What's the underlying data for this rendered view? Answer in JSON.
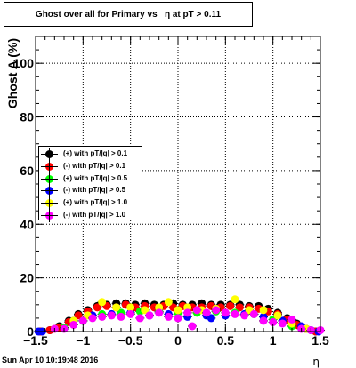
{
  "title": "Ghost over all for Primary vs   η at pT > 0.11",
  "footer": "Sun Apr 10 10:19:48 2016",
  "chart_data": {
    "type": "scatter",
    "xlabel": "η",
    "ylabel": "Ghost A (%)",
    "xlim": [
      -1.5,
      1.5
    ],
    "ylim": [
      0,
      110
    ],
    "x_ticks": [
      -1.5,
      -1,
      -0.5,
      0,
      0.5,
      1,
      1.5
    ],
    "x_tick_labels": [
      "−1.5",
      "−1",
      "−0.5",
      "0",
      "0.5",
      "1",
      "1.5"
    ],
    "y_ticks": [
      0,
      20,
      40,
      60,
      80,
      100
    ],
    "y_tick_labels": [
      "0",
      "20",
      "40",
      "60",
      "80",
      "100"
    ],
    "grid": true,
    "legend_position": "middle-left",
    "series": [
      {
        "name": "(+) with pT/|q| > 0.1",
        "color": "#000000",
        "points": [
          [
            -1.45,
            0
          ],
          [
            -1.35,
            0.5
          ],
          [
            -1.25,
            2
          ],
          [
            -1.15,
            4
          ],
          [
            -1.05,
            6.5
          ],
          [
            -0.95,
            8
          ],
          [
            -0.85,
            9.5
          ],
          [
            -0.75,
            10
          ],
          [
            -0.65,
            10.5
          ],
          [
            -0.55,
            10.5
          ],
          [
            -0.45,
            10
          ],
          [
            -0.35,
            10.5
          ],
          [
            -0.25,
            10
          ],
          [
            -0.15,
            10
          ],
          [
            -0.05,
            10.5
          ],
          [
            0.05,
            10
          ],
          [
            0.15,
            10
          ],
          [
            0.25,
            10.5
          ],
          [
            0.35,
            10
          ],
          [
            0.45,
            10
          ],
          [
            0.55,
            10
          ],
          [
            0.65,
            10
          ],
          [
            0.75,
            9.5
          ],
          [
            0.85,
            9.5
          ],
          [
            0.95,
            8.5
          ],
          [
            1.05,
            7
          ],
          [
            1.15,
            5
          ],
          [
            1.25,
            3
          ],
          [
            1.35,
            1
          ],
          [
            1.45,
            0
          ]
        ]
      },
      {
        "name": "(-) with pT/|q| > 0.1",
        "color": "#ff0000",
        "points": [
          [
            -1.45,
            0
          ],
          [
            -1.35,
            0.5
          ],
          [
            -1.25,
            1.5
          ],
          [
            -1.15,
            3.5
          ],
          [
            -1.05,
            6
          ],
          [
            -0.95,
            7.5
          ],
          [
            -0.85,
            9
          ],
          [
            -0.75,
            9.5
          ],
          [
            -0.65,
            9
          ],
          [
            -0.55,
            10
          ],
          [
            -0.45,
            9
          ],
          [
            -0.35,
            9.5
          ],
          [
            -0.25,
            9
          ],
          [
            -0.15,
            9.5
          ],
          [
            -0.05,
            9
          ],
          [
            0.05,
            9.5
          ],
          [
            0.15,
            9
          ],
          [
            0.25,
            9
          ],
          [
            0.35,
            9.5
          ],
          [
            0.45,
            9
          ],
          [
            0.55,
            9.5
          ],
          [
            0.65,
            9
          ],
          [
            0.75,
            9
          ],
          [
            0.85,
            8.5
          ],
          [
            0.95,
            7.5
          ],
          [
            1.05,
            6.5
          ],
          [
            1.15,
            4.5
          ],
          [
            1.25,
            2.5
          ],
          [
            1.35,
            1
          ],
          [
            1.45,
            0
          ]
        ]
      },
      {
        "name": "(+) with pT/|q| > 0.5",
        "color": "#00ff00",
        "points": [
          [
            -1.2,
            1.5
          ],
          [
            -1.0,
            4
          ],
          [
            -0.8,
            6.5
          ],
          [
            -0.6,
            7
          ],
          [
            -0.4,
            7.5
          ],
          [
            -0.2,
            7.5
          ],
          [
            0.0,
            7
          ],
          [
            0.2,
            7
          ],
          [
            0.4,
            7.5
          ],
          [
            0.6,
            7
          ],
          [
            0.8,
            6.5
          ],
          [
            1.0,
            4.5
          ],
          [
            1.2,
            2
          ]
        ]
      },
      {
        "name": "(-) with pT/|q| > 0.5",
        "color": "#0000ff",
        "points": [
          [
            -1.47,
            0
          ],
          [
            -1.43,
            0
          ],
          [
            -1.1,
            4
          ],
          [
            -0.9,
            6
          ],
          [
            -0.7,
            6.5
          ],
          [
            -0.5,
            7
          ],
          [
            -0.3,
            6
          ],
          [
            -0.1,
            6.5
          ],
          [
            0.1,
            5.5
          ],
          [
            0.3,
            6
          ],
          [
            0.35,
            5
          ],
          [
            0.5,
            6
          ],
          [
            0.7,
            6.5
          ],
          [
            0.9,
            5.5
          ],
          [
            1.1,
            4
          ],
          [
            1.3,
            2
          ],
          [
            1.4,
            0.5
          ],
          [
            1.48,
            0
          ]
        ]
      },
      {
        "name": "(+) with pT/|q| > 1.0",
        "color": "#ffff00",
        "points": [
          [
            -1.3,
            1
          ],
          [
            -1.1,
            4
          ],
          [
            -0.95,
            6
          ],
          [
            -0.8,
            11
          ],
          [
            -0.65,
            9
          ],
          [
            -0.5,
            9
          ],
          [
            -0.35,
            8
          ],
          [
            -0.2,
            9
          ],
          [
            -0.1,
            11
          ],
          [
            0.0,
            8
          ],
          [
            0.1,
            9
          ],
          [
            0.25,
            8
          ],
          [
            0.4,
            8.5
          ],
          [
            0.6,
            12
          ],
          [
            0.75,
            8
          ],
          [
            0.9,
            8
          ],
          [
            1.05,
            6
          ],
          [
            1.2,
            3
          ],
          [
            1.35,
            1
          ]
        ]
      },
      {
        "name": "(-) with pT/|q| > 1.0",
        "color": "#ff00ff",
        "points": [
          [
            -1.3,
            1
          ],
          [
            -1.2,
            1
          ],
          [
            -1.1,
            2.5
          ],
          [
            -1.0,
            4
          ],
          [
            -0.9,
            5
          ],
          [
            -0.8,
            5.5
          ],
          [
            -0.7,
            6
          ],
          [
            -0.6,
            5.5
          ],
          [
            -0.5,
            6.5
          ],
          [
            -0.4,
            5
          ],
          [
            -0.3,
            6
          ],
          [
            -0.2,
            7
          ],
          [
            -0.1,
            5.5
          ],
          [
            0.0,
            5
          ],
          [
            0.1,
            7
          ],
          [
            0.15,
            2
          ],
          [
            0.2,
            8
          ],
          [
            0.3,
            7
          ],
          [
            0.4,
            8
          ],
          [
            0.5,
            7
          ],
          [
            0.6,
            6.5
          ],
          [
            0.7,
            6
          ],
          [
            0.8,
            6.5
          ],
          [
            0.9,
            4
          ],
          [
            1.0,
            3.5
          ],
          [
            1.1,
            3
          ],
          [
            1.2,
            4.5
          ],
          [
            1.3,
            1
          ],
          [
            1.4,
            0.5
          ],
          [
            1.5,
            0.5
          ]
        ]
      }
    ]
  }
}
